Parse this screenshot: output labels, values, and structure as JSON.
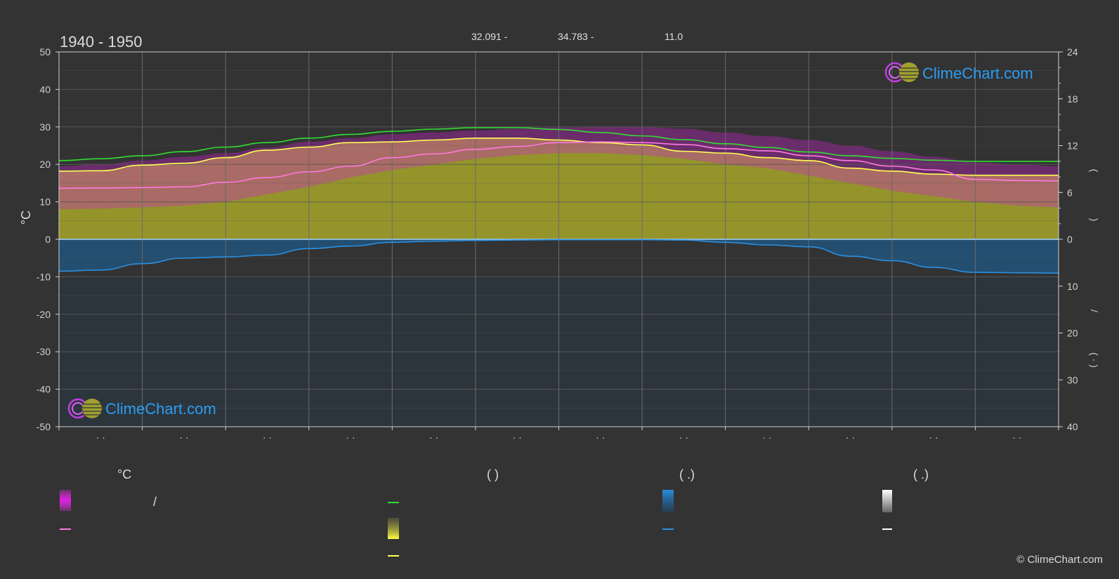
{
  "header": {
    "period": "1940 - 1950",
    "stat_1": "32.091 -",
    "stat_2": "34.783 -",
    "stat_3": "11.0"
  },
  "left_axis": {
    "unit": "°C"
  },
  "legend": {
    "col1_head": "°C",
    "col1_slash": "/",
    "col2_head": "(          )",
    "col3_head": "(   .)",
    "col4_head": "(   .)"
  },
  "right_axis_chars": [
    "(",
    ")",
    "/",
    "(  ·  )"
  ],
  "logo_text": "ClimeChart.com",
  "copyright": "© ClimeChart.com",
  "month_marker": "· ·",
  "colors": {
    "background": "#333333",
    "grid": "#5a5a5a",
    "temp_range_band": "#d020d0",
    "mean_temp_line": "#ff79e0",
    "daylight_line": "#33dd33",
    "sunshine_fill": "#a6a62a",
    "sunshine_line": "#ffff55",
    "rain_fill": "#1d5a8a",
    "rain_line": "#2a8fe0",
    "logo_blue": "#2a9df4"
  },
  "chart_data": {
    "type": "line",
    "months": 12,
    "left_ylim": [
      -50,
      50
    ],
    "left_yticks": [
      50,
      40,
      30,
      20,
      10,
      0,
      -10,
      -20,
      -30,
      -40,
      -50
    ],
    "right_top_ticks": [
      24,
      18,
      12,
      6,
      0
    ],
    "right_bottom_ticks": [
      10,
      20,
      30,
      40
    ],
    "grid": true,
    "x": [
      0,
      0.5,
      1,
      1.5,
      2,
      2.5,
      3,
      3.5,
      4,
      4.5,
      5,
      5.5,
      6,
      6.5,
      7,
      7.5,
      8,
      8.5,
      9,
      9.5,
      10,
      10.5,
      11,
      11.5,
      12
    ],
    "series": [
      {
        "key": "daylight",
        "values": [
          21.0,
          21.5,
          22.3,
          23.4,
          24.6,
          25.8,
          27.0,
          28.0,
          28.8,
          29.4,
          29.8,
          29.8,
          29.3,
          28.5,
          27.6,
          26.6,
          25.5,
          24.5,
          23.3,
          22.3,
          21.6,
          21.1,
          20.8,
          20.8,
          20.8
        ]
      },
      {
        "key": "sunshine",
        "values": [
          18.2,
          18.3,
          19.8,
          20.3,
          21.8,
          23.8,
          24.6,
          25.8,
          26.0,
          26.5,
          27.0,
          27.0,
          26.5,
          25.8,
          25.2,
          23.5,
          23.0,
          21.8,
          21.0,
          19.0,
          18.2,
          17.4,
          17.1,
          17.1,
          17.1
        ]
      },
      {
        "key": "mean_temp",
        "values": [
          13.6,
          13.7,
          13.8,
          14.0,
          15.2,
          16.5,
          18.0,
          19.5,
          21.8,
          22.8,
          24.0,
          24.8,
          25.8,
          26.0,
          25.8,
          25.3,
          24.2,
          23.6,
          22.3,
          21.0,
          19.5,
          18.5,
          16.0,
          15.7,
          15.6
        ]
      },
      {
        "key": "rain",
        "values": [
          -8.5,
          -8.2,
          -6.5,
          -5.0,
          -4.7,
          -4.2,
          -2.5,
          -1.8,
          -0.8,
          -0.5,
          -0.3,
          -0.2,
          -0.1,
          -0.1,
          -0.1,
          -0.2,
          -0.8,
          -1.5,
          -2.0,
          -4.5,
          -5.7,
          -7.5,
          -8.8,
          -8.9,
          -9.0
        ]
      }
    ],
    "temp_band": {
      "upper": [
        19.5,
        20.0,
        21.0,
        22.0,
        23.0,
        24.5,
        26.0,
        27.0,
        28.0,
        28.5,
        29.0,
        29.5,
        29.8,
        30.0,
        30.0,
        29.5,
        28.5,
        27.5,
        26.5,
        25.0,
        23.5,
        22.0,
        20.5,
        20.0,
        19.5
      ],
      "lower": [
        8.0,
        8.2,
        8.5,
        9.0,
        10.0,
        12.0,
        14.0,
        16.5,
        18.5,
        20.0,
        21.5,
        22.5,
        23.0,
        23.0,
        22.5,
        21.5,
        20.0,
        19.0,
        17.0,
        15.0,
        13.0,
        11.5,
        10.0,
        9.0,
        8.5
      ]
    }
  }
}
